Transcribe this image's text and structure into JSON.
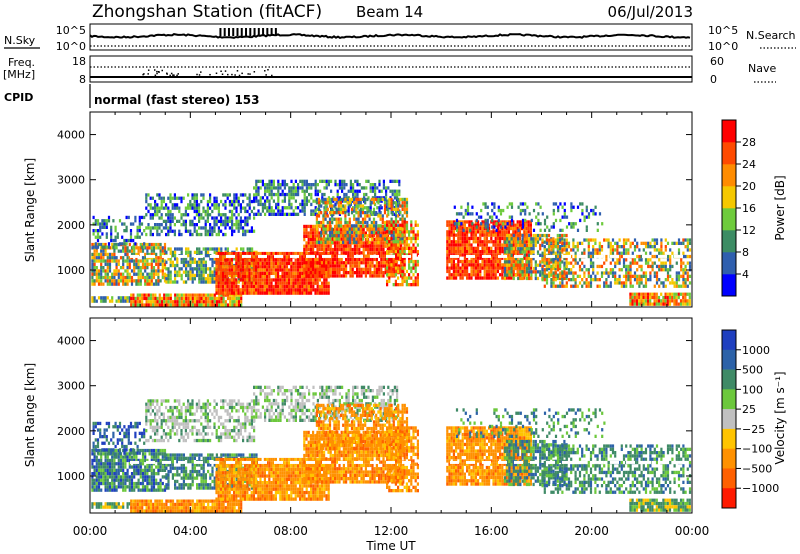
{
  "header": {
    "title": "Zhongshan Station (fitACF)",
    "beam": "Beam 14",
    "date": "06/Jul/2013"
  },
  "top_panels": {
    "nsky_label": "N.Sky",
    "nsearch_label": "N.Search",
    "freq_label_1": "Freq.",
    "freq_label_2": "[MHz]",
    "nave_label": "Nave",
    "cpid_label": "CPID",
    "cpid_value": "normal (fast stereo) 153",
    "noise_tick_hi": "10^5",
    "noise_tick_lo": "10^0",
    "noise_tick_hi_r": "10^5",
    "noise_tick_lo_r": "10^0",
    "freq_tick_hi": "18",
    "freq_tick_lo": "8",
    "nave_tick_hi": "60",
    "nave_tick_lo": "0"
  },
  "colors": {
    "power_scale": [
      "#0000ff",
      "#2f5fae",
      "#3c8c64",
      "#6ecb3c",
      "#f5c800",
      "#ff8c00",
      "#ff4a00",
      "#ff0000"
    ],
    "velocity_scale": [
      "#1f3fbf",
      "#2c62a8",
      "#3f8a66",
      "#6cc83c",
      "#c0c0c0",
      "#ffc400",
      "#ff9100",
      "#ff6000",
      "#ff1a00"
    ]
  },
  "chart_data": [
    {
      "type": "heatmap",
      "panel": "power",
      "ylabel": "Slant Range [km]",
      "ylim": [
        180,
        4500
      ],
      "xlim": [
        0,
        24
      ],
      "yticks": [
        "1000",
        "2000",
        "3000",
        "4000"
      ],
      "colorbar_label": "Power [dB]",
      "colorbar_ticks": [
        "4",
        "8",
        "12",
        "16",
        "20",
        "24",
        "28"
      ],
      "colorbar_range": [
        0,
        32
      ]
    },
    {
      "type": "heatmap",
      "panel": "velocity",
      "ylabel": "Slant Range [km]",
      "ylim": [
        180,
        4500
      ],
      "xlim": [
        0,
        24
      ],
      "yticks": [
        "1000",
        "2000",
        "3000",
        "4000"
      ],
      "colorbar_label": "Velocity [m s⁻¹]",
      "colorbar_ticks": [
        "1000",
        "500",
        "100",
        "25",
        "−25",
        "−100",
        "−500",
        "−1000"
      ]
    }
  ],
  "x_axis": {
    "xlabel": "Time UT",
    "ticks": [
      "00:00",
      "04:00",
      "08:00",
      "12:00",
      "16:00",
      "20:00",
      "00:00"
    ]
  }
}
